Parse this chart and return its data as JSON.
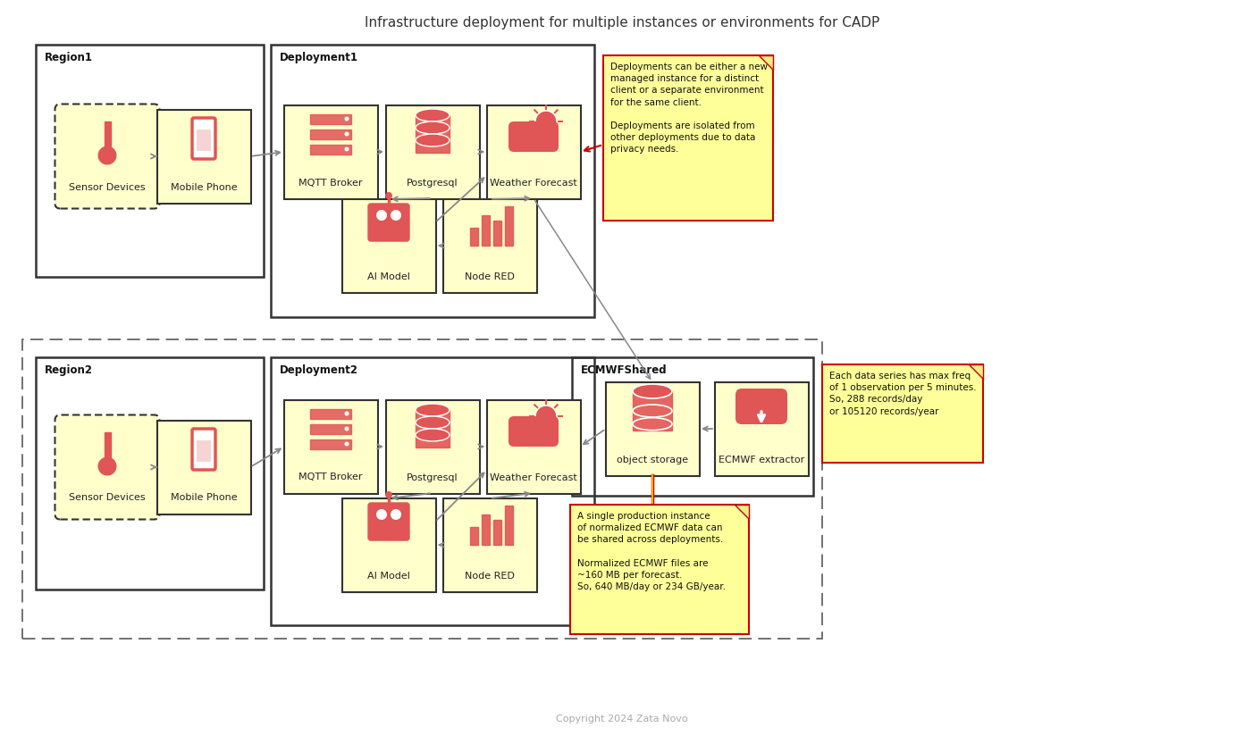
{
  "title": "Infrastructure deployment for multiple instances or environments for CADP",
  "title_fontsize": 11,
  "background_color": "#ffffff",
  "box_fill": "#ffffcc",
  "box_edge": "#333333",
  "icon_color": "#e05555",
  "arrow_color": "#888888",
  "note_fill": "#ffff99",
  "note_edge": "#cc0000",
  "note1_text": "Deployments can be either a new\nmanaged instance for a distinct\nclient or a separate environment\nfor the same client.\n\nDeployments are isolated from\nother deployments due to data\nprivacy needs.",
  "note2_text": "Each data series has max freq\nof 1 observation per 5 minutes.\nSo, 288 records/day\nor 105120 records/year",
  "note3_text": "A single production instance\nof normalized ECMWF data can\nbe shared across deployments.\n\nNormalized ECMWF files are\n~160 MB per forecast.\nSo, 640 MB/day or 234 GB/year.",
  "copyright": "Copyright 2024 Zata Novo",
  "region1_label": "Region1",
  "region2_label": "Region2",
  "deploy1_label": "Deployment1",
  "deploy2_label": "Deployment2",
  "ecmwf_label": "ECMWFShared"
}
